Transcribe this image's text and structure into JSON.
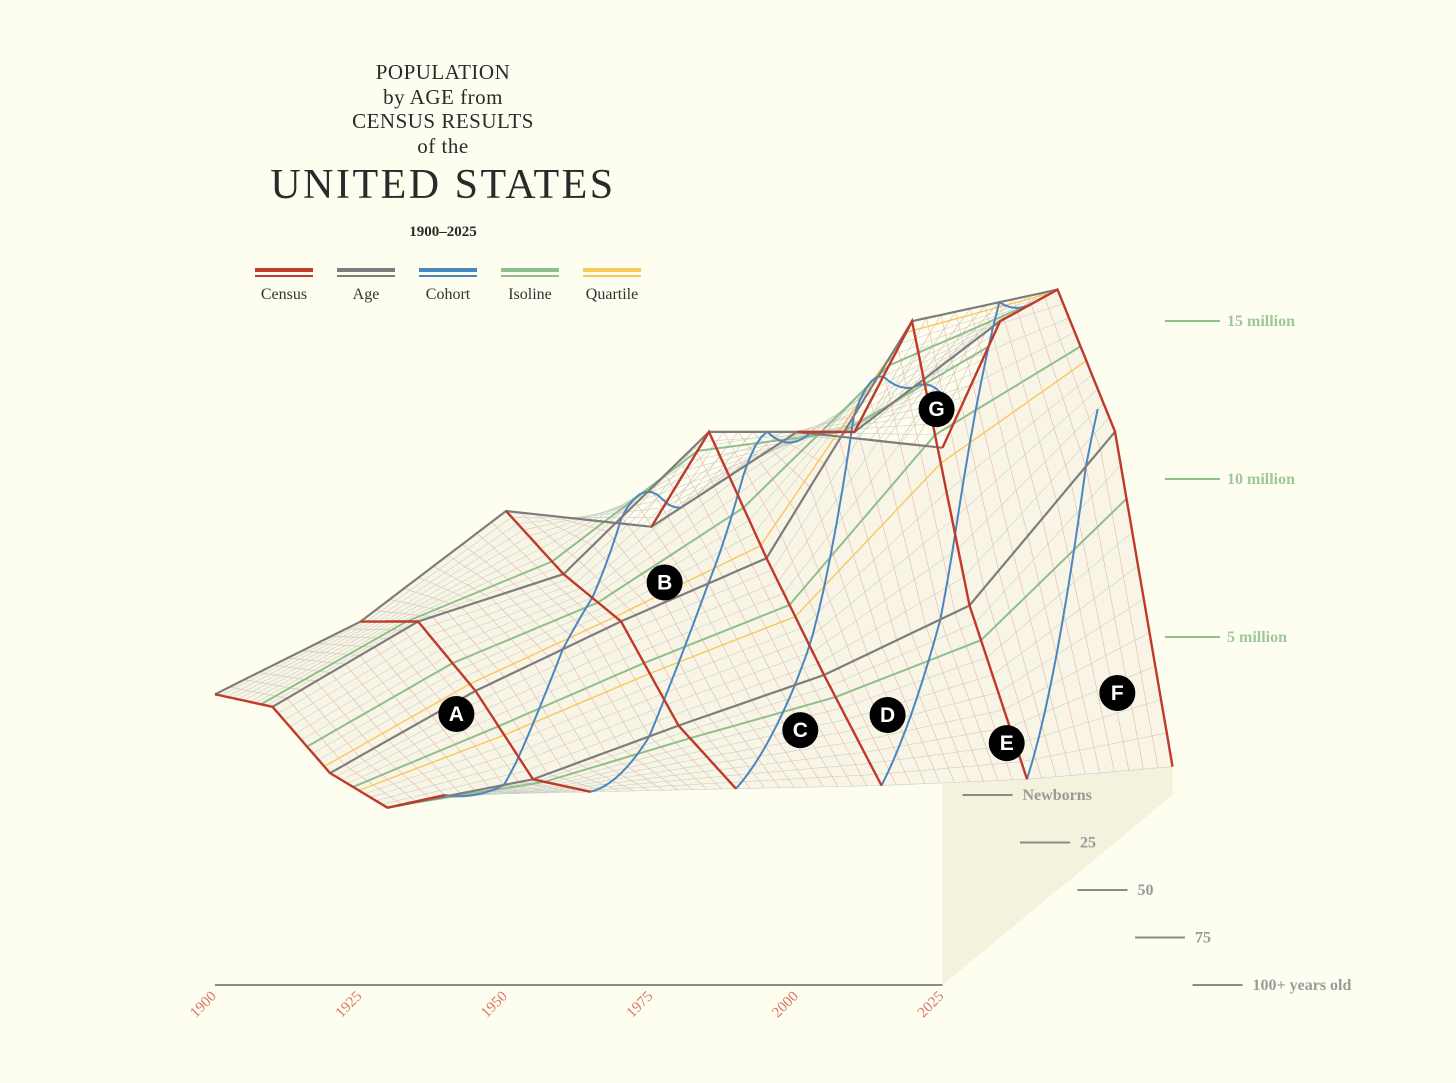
{
  "title": {
    "line1": "POPULATION",
    "line2": "by AGE from",
    "line3": "CENSUS RESULTS",
    "line4": "of the",
    "main": "UNITED STATES",
    "years": "1900–2025"
  },
  "legend": [
    {
      "label": "Census",
      "color": "#c0392b"
    },
    {
      "label": "Age",
      "color": "#7d7d7d"
    },
    {
      "label": "Cohort",
      "color": "#4a86c0"
    },
    {
      "label": "Isoline",
      "color": "#8fbf8a"
    },
    {
      "label": "Quartile",
      "color": "#f7c85a"
    }
  ],
  "chart_data": {
    "type": "area",
    "projection": "3d-surface",
    "x_axis": {
      "labels": [
        "1900",
        "1925",
        "1950",
        "1975",
        "2000",
        "2025"
      ]
    },
    "depth_axis": {
      "labels": [
        "100+ years old",
        "75",
        "50",
        "25",
        "Newborns"
      ]
    },
    "z_axis": {
      "labels": [
        "5 million",
        "10 million",
        "15 million"
      ],
      "values": [
        5000000,
        10000000,
        15000000
      ]
    },
    "annotations": [
      "A",
      "B",
      "C",
      "D",
      "E",
      "F",
      "G"
    ],
    "series": [
      {
        "name": "Census",
        "x": [
          1900,
          1925,
          1950,
          1975,
          2000,
          2025
        ],
        "ages": [
          0,
          25,
          50,
          75,
          100
        ],
        "population_millions": [
          [
            9.2,
            7.3,
            3.7,
            1.1,
            0.0
          ],
          [
            11.5,
            10.0,
            6.3,
            2.0,
            0.1
          ],
          [
            15.0,
            11.5,
            8.5,
            3.7,
            0.2
          ],
          [
            14.5,
            16.0,
            10.5,
            5.3,
            0.3
          ],
          [
            17.5,
            16.0,
            18.0,
            7.5,
            0.5
          ],
          [
            17.0,
            19.5,
            19.0,
            13.0,
            0.9
          ]
        ]
      }
    ],
    "colors": {
      "census": "#c0392b",
      "age": "#7d7d7d",
      "cohort": "#4a86c0",
      "isoline": "#8fbf8a",
      "quartile": "#f7c85a",
      "background": "#fdfdf0"
    }
  }
}
